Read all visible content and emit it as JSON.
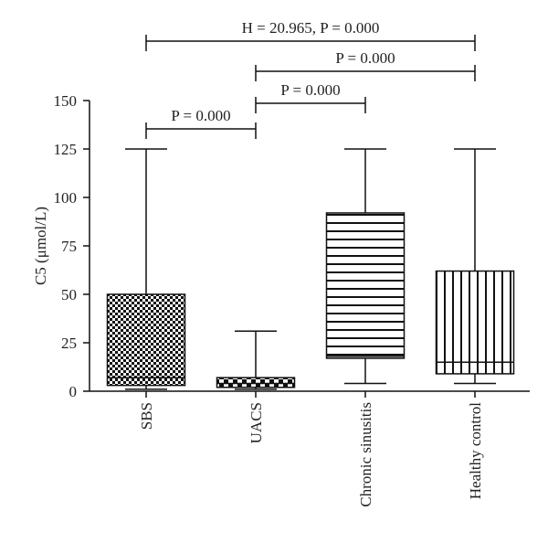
{
  "chart_data": {
    "type": "box",
    "y_label": "C5 (μmol/L)",
    "categories": [
      "SBS",
      "UACS",
      "Chronic sinusitis",
      "Healthy control"
    ],
    "min": [
      1,
      1,
      4,
      4
    ],
    "q1": [
      3,
      2,
      17,
      9
    ],
    "median": [
      7,
      4,
      18,
      15
    ],
    "q3": [
      50,
      7,
      92,
      62
    ],
    "max": [
      125,
      31,
      125,
      125
    ],
    "ylim": [
      0,
      150
    ],
    "yticks": [
      0,
      25,
      50,
      75,
      100,
      125,
      150
    ],
    "annotations": [
      "H = 20.965, P = 0.000",
      "P = 0.000",
      "P = 0.000",
      "P = 0.000"
    ]
  }
}
